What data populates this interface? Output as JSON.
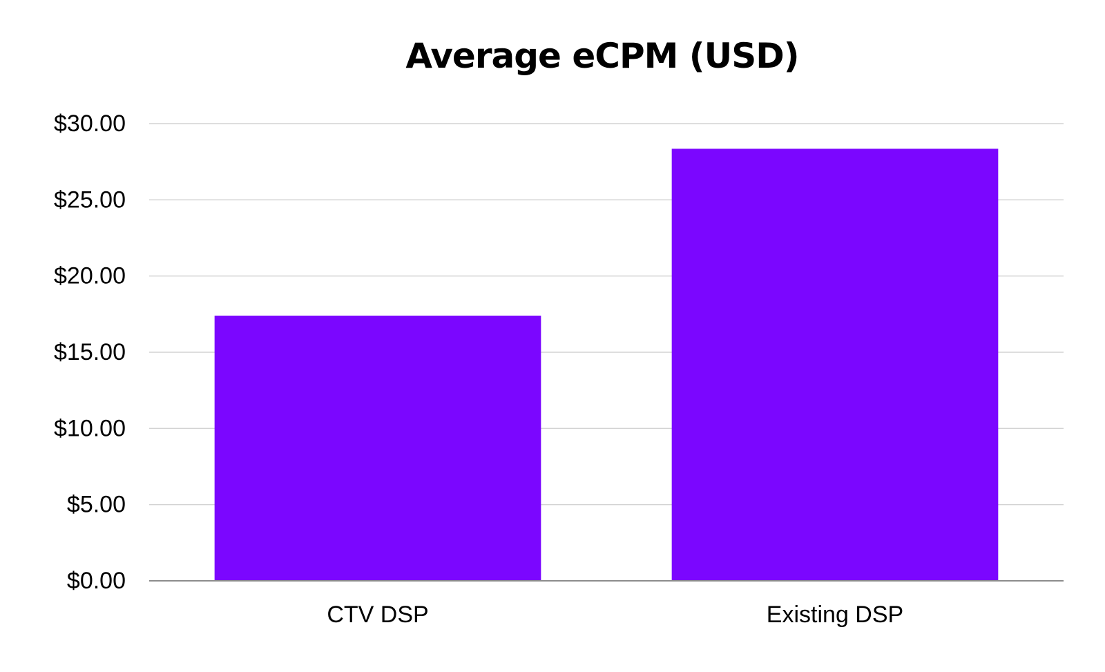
{
  "chart_data": {
    "type": "bar",
    "title": "Average eCPM (USD)",
    "categories": [
      "CTV DSP",
      "Existing DSP"
    ],
    "series": [
      {
        "values": [
          17.4,
          28.35
        ]
      }
    ],
    "xlabel": "",
    "ylabel": "",
    "ylim": [
      0,
      30
    ],
    "yticks": [
      0,
      5,
      10,
      15,
      20,
      25,
      30
    ],
    "ytick_labels": [
      "$0.00",
      "$5.00",
      "$10.00",
      "$15.00",
      "$20.00",
      "$25.00",
      "$30.00"
    ],
    "grid": true,
    "legend": "none",
    "colors": {
      "bar": "#7B06FF",
      "grid": "#D3D3D3",
      "axis": "#8C8C8C",
      "text": "#000000"
    }
  }
}
